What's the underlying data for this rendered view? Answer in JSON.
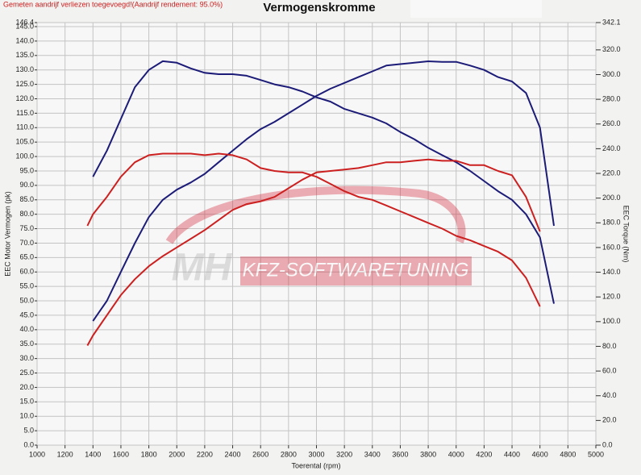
{
  "chart_data": {
    "type": "line",
    "title": "Vermogenskromme",
    "note": "Gemeten aandrijf verliezen toegevoegd!(Aandrijf rendement: 95.0%)",
    "x_label": "Toerental (rpm)",
    "y_label": "EEC Motor Vermogen (pk)",
    "y2_label": "EEC Torque (Nm)",
    "watermark": {
      "logo": "MH",
      "text": "KFZ-SOFTWARETUNING"
    },
    "grid": true,
    "xlim": [
      1000,
      5000
    ],
    "xticks": [
      1000,
      1200,
      1400,
      1600,
      1800,
      2000,
      2200,
      2400,
      2600,
      2800,
      3000,
      3200,
      3400,
      3600,
      3800,
      4000,
      4200,
      4400,
      4600,
      4800,
      5000
    ],
    "ylim": [
      0,
      146.4
    ],
    "yticks": [
      {
        "value": 0,
        "label": "0.0"
      },
      {
        "value": 5,
        "label": "5.0"
      },
      {
        "value": 10,
        "label": "10.0"
      },
      {
        "value": 15,
        "label": "15.0"
      },
      {
        "value": 20,
        "label": "20.0"
      },
      {
        "value": 25,
        "label": "25.0"
      },
      {
        "value": 30,
        "label": "30.0"
      },
      {
        "value": 35,
        "label": "35.0"
      },
      {
        "value": 40,
        "label": "40.0"
      },
      {
        "value": 45,
        "label": "45.0"
      },
      {
        "value": 50,
        "label": "50.0"
      },
      {
        "value": 55,
        "label": "55.0"
      },
      {
        "value": 60,
        "label": "60.0"
      },
      {
        "value": 65,
        "label": "65.0"
      },
      {
        "value": 70,
        "label": "70.0"
      },
      {
        "value": 75,
        "label": "75.0"
      },
      {
        "value": 80,
        "label": "80.0"
      },
      {
        "value": 85,
        "label": "85.0"
      },
      {
        "value": 90,
        "label": "90.0"
      },
      {
        "value": 95,
        "label": "95.0"
      },
      {
        "value": 100,
        "label": "100.0"
      },
      {
        "value": 105,
        "label": "105.0"
      },
      {
        "value": 110,
        "label": "110.0"
      },
      {
        "value": 115,
        "label": "115.0"
      },
      {
        "value": 120,
        "label": "120.0"
      },
      {
        "value": 125,
        "label": "125.0"
      },
      {
        "value": 130,
        "label": "130.0"
      },
      {
        "value": 135,
        "label": "135.0"
      },
      {
        "value": 140,
        "label": "140.0"
      },
      {
        "value": 145,
        "label": "145.0"
      },
      146.4
    ],
    "y2lim": [
      0,
      342.1
    ],
    "y2ticks": [
      {
        "value": 0,
        "label": "0.0"
      },
      {
        "value": 20,
        "label": "20.0"
      },
      {
        "value": 40,
        "label": "40.0"
      },
      {
        "value": 60,
        "label": "60.0"
      },
      {
        "value": 80,
        "label": "80.0"
      },
      {
        "value": 100,
        "label": "100.0"
      },
      {
        "value": 120,
        "label": "120.0"
      },
      {
        "value": 140,
        "label": "140.0"
      },
      {
        "value": 160,
        "label": "160.0"
      },
      {
        "value": 180,
        "label": "180.0"
      },
      {
        "value": 200,
        "label": "200.0"
      },
      {
        "value": 220,
        "label": "220.0"
      },
      {
        "value": 240,
        "label": "240.0"
      },
      {
        "value": 260,
        "label": "260.0"
      },
      {
        "value": 280,
        "label": "280.0"
      },
      {
        "value": 300,
        "label": "300.0"
      },
      {
        "value": 320,
        "label": "320.0"
      },
      342.1
    ],
    "x": [
      1360,
      1400,
      1500,
      1600,
      1700,
      1800,
      1900,
      2000,
      2100,
      2200,
      2300,
      2400,
      2500,
      2600,
      2700,
      2800,
      2900,
      3000,
      3100,
      3200,
      3300,
      3400,
      3500,
      3600,
      3700,
      3800,
      3900,
      4000,
      4100,
      4200,
      4300,
      4400,
      4500,
      4600,
      4700
    ],
    "series": [
      {
        "color": "#1c1c78",
        "values": [
          null,
          43,
          50,
          60,
          70,
          79,
          85,
          88.5,
          91,
          94,
          98,
          102,
          106,
          109.5,
          112,
          115,
          118,
          121,
          123.5,
          125.5,
          127.5,
          129.5,
          131.5,
          132,
          132.5,
          133,
          132.8,
          132.8,
          131.5,
          130,
          127.5,
          126,
          122,
          110,
          76
        ]
      },
      {
        "color": "#1c1c78",
        "axis": "y2",
        "values": [
          null,
          217.3,
          238.4,
          264.1,
          289.8,
          303.8,
          310.8,
          309.6,
          305.0,
          301.4,
          300.3,
          300.3,
          299.1,
          295.6,
          292.1,
          289.8,
          286.3,
          281.6,
          278.1,
          272.2,
          268.7,
          265.2,
          260.5,
          253.5,
          247.7,
          240.7,
          234.8,
          229.0,
          222.0,
          213.8,
          205.6,
          198.6,
          186.9,
          168.2,
          114.5
        ]
      },
      {
        "color": "#cc2020",
        "values": [
          34.5,
          38,
          45,
          52,
          57.5,
          62,
          65.5,
          68.5,
          71.5,
          74.5,
          78,
          81.5,
          83.5,
          84.5,
          86,
          89,
          92,
          94.5,
          95,
          95.5,
          96,
          97,
          98,
          98,
          98.5,
          99,
          98.5,
          98.5,
          97,
          97,
          95,
          93.5,
          86,
          74,
          null
        ]
      },
      {
        "color": "#cc2020",
        "axis": "y2",
        "values": [
          177.6,
          186.9,
          201.0,
          217.3,
          229.0,
          234.8,
          236.0,
          236.0,
          236.0,
          234.8,
          236.0,
          234.8,
          231.3,
          224.3,
          222.0,
          220.8,
          220.8,
          217.3,
          211.5,
          205.6,
          201.0,
          198.6,
          194.0,
          189.3,
          184.6,
          179.9,
          175.3,
          169.4,
          165.9,
          161.2,
          156.6,
          149.6,
          135.5,
          112.2,
          null
        ]
      }
    ]
  }
}
